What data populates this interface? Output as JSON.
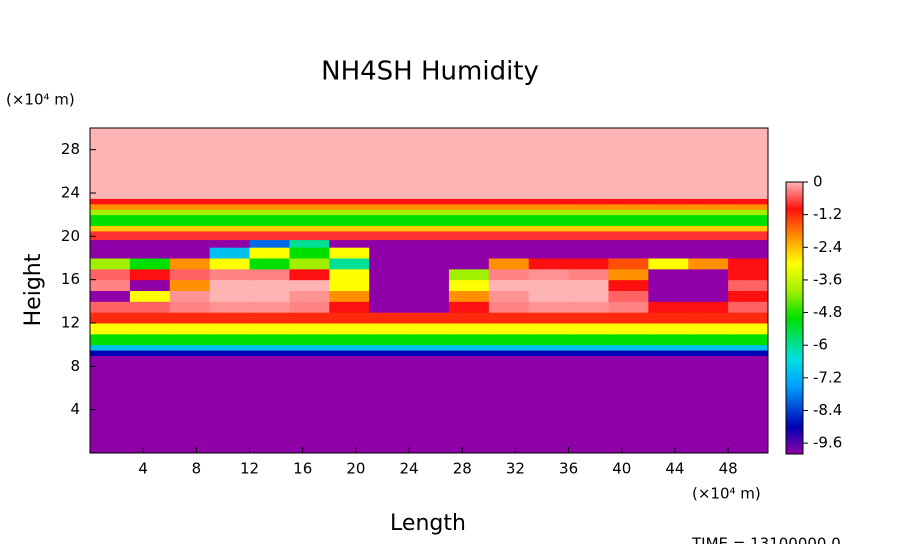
{
  "chart_data": {
    "type": "heatmap",
    "title": "NH4SH Humidity",
    "xlabel": "Length",
    "ylabel": "Height",
    "xunit": "(×10⁴ m)",
    "yunit": "(×10⁴ m)",
    "footer": "TIME =  13100000.0",
    "xlim": [
      0,
      51
    ],
    "ylim": [
      0,
      30
    ],
    "xticks": [
      4,
      8,
      12,
      16,
      20,
      24,
      28,
      32,
      36,
      40,
      44,
      48
    ],
    "yticks": [
      4,
      8,
      12,
      16,
      20,
      24,
      28
    ],
    "x_edges": [
      0,
      3,
      6,
      9,
      12,
      15,
      18,
      21,
      24,
      27,
      30,
      33,
      36,
      39,
      42,
      45,
      48,
      51
    ],
    "y_edges": [
      0,
      9,
      9.5,
      10,
      11,
      12,
      13,
      14,
      15,
      16,
      17,
      18,
      19,
      19.7,
      20.5,
      21,
      22,
      22.5,
      23,
      23.5,
      30
    ],
    "z": [
      [
        -10,
        -10,
        -10,
        -10,
        -10,
        -10,
        -10,
        -10,
        -10,
        -10,
        -10,
        -10,
        -10,
        -10,
        -10,
        -10,
        -10
      ],
      [
        -9,
        -9,
        -9,
        -9,
        -9,
        -9,
        -9,
        -9,
        -9,
        -9,
        -9,
        -9,
        -9,
        -9,
        -9,
        -9,
        -9
      ],
      [
        -7,
        -7,
        -7,
        -7,
        -7,
        -7,
        -7,
        -7,
        -7,
        -7,
        -7,
        -7,
        -7,
        -7,
        -7,
        -7,
        -7
      ],
      [
        -5,
        -5,
        -5,
        -5,
        -5,
        -5,
        -5,
        -5,
        -5,
        -5,
        -5,
        -5,
        -5,
        -5,
        -5,
        -5,
        -5
      ],
      [
        -3,
        -3,
        -3,
        -3,
        -3,
        -3,
        -3,
        -3,
        -3,
        -3,
        -3,
        -3,
        -3,
        -3,
        -3,
        -3,
        -3
      ],
      [
        -1.2,
        -1.2,
        -1.2,
        -1.2,
        -1.2,
        -1.2,
        -1.2,
        -1.2,
        -1.2,
        -1.2,
        -1.2,
        -1.2,
        -1.2,
        -1.2,
        -1.2,
        -1.2,
        -1.2
      ],
      [
        -0.5,
        -0.5,
        -0.3,
        -0.2,
        -0.2,
        -0.3,
        -1,
        -10,
        -10,
        -1,
        -0.3,
        -0.2,
        -0.2,
        -0.3,
        -1,
        -1,
        -0.5
      ],
      [
        -10,
        -3,
        -0.2,
        0,
        0,
        -0.2,
        -2,
        -10,
        -10,
        -2,
        -0.2,
        0,
        0,
        -0.5,
        -10,
        -10,
        -1
      ],
      [
        -0.3,
        -10,
        -2,
        0,
        0,
        0,
        -3,
        -10,
        -10,
        -3,
        0,
        0,
        0,
        -1,
        -10,
        -10,
        -0.5
      ],
      [
        -0.5,
        -1,
        -0.5,
        -0.3,
        -0.3,
        -1,
        -3,
        -10,
        -10,
        -4,
        -0.3,
        -0.2,
        -0.3,
        -2,
        -10,
        -10,
        -1
      ],
      [
        -4,
        -5,
        -2,
        -3,
        -5,
        -4,
        -6,
        -10,
        -10,
        -10,
        -2,
        -1,
        -1,
        -1.5,
        -3,
        -2,
        -1
      ],
      [
        -10,
        -10,
        -10,
        -7,
        -3,
        -5,
        -3,
        -10,
        -10,
        -10,
        -10,
        -10,
        -10,
        -10,
        -10,
        -10,
        -10
      ],
      [
        -10,
        -10,
        -10,
        -10,
        -8,
        -6,
        -10,
        -10,
        -10,
        -10,
        -10,
        -10,
        -10,
        -10,
        -10,
        -10,
        -10
      ],
      [
        -0.8,
        -0.8,
        -0.8,
        -0.8,
        -0.8,
        -0.8,
        -0.8,
        -0.8,
        -0.8,
        -0.8,
        -0.8,
        -0.8,
        -0.8,
        -0.8,
        -0.8,
        -0.8,
        -0.8
      ],
      [
        -2.5,
        -2.5,
        -2.5,
        -2.5,
        -2.5,
        -2.5,
        -2.5,
        -2.5,
        -2.5,
        -2.5,
        -2.5,
        -2.5,
        -2.5,
        -2.5,
        -2.5,
        -2.5,
        -2.5
      ],
      [
        -5,
        -5,
        -5,
        -5,
        -5,
        -5,
        -5,
        -5,
        -5,
        -5,
        -5,
        -5,
        -5,
        -5,
        -5,
        -5,
        -5
      ],
      [
        -4,
        -4,
        -4,
        -4,
        -4,
        -4,
        -4,
        -4,
        -4,
        -4,
        -4,
        -4,
        -4,
        -4,
        -4,
        -4,
        -4
      ],
      [
        -2,
        -2,
        -2,
        -2,
        -2,
        -2,
        -2,
        -2,
        -2,
        -2,
        -2,
        -2,
        -2,
        -2,
        -2,
        -2,
        -2
      ],
      [
        -1,
        -1,
        -1,
        -1,
        -1,
        -1,
        -1,
        -1,
        -1,
        -1,
        -1,
        -1,
        -1,
        -1,
        -1,
        -1,
        -1
      ],
      [
        0,
        0,
        0,
        0,
        0,
        0,
        0,
        0,
        0,
        0,
        0,
        0,
        0,
        0,
        0,
        0,
        0
      ]
    ],
    "colorbar_lim": [
      -10,
      0
    ],
    "colorbar_ticks": [
      0,
      -1.2,
      -2.4,
      -3.6,
      -4.8,
      -6,
      -7.2,
      -8.4,
      -9.6
    ],
    "colorscale": [
      [
        -10,
        "#9000a8"
      ],
      [
        -9,
        "#0000b4"
      ],
      [
        -7.5,
        "#00a0ff"
      ],
      [
        -6.5,
        "#00e0e0"
      ],
      [
        -5,
        "#00e000"
      ],
      [
        -4,
        "#a0f000"
      ],
      [
        -3,
        "#ffff00"
      ],
      [
        -2,
        "#ff9000"
      ],
      [
        -1,
        "#ff1010"
      ],
      [
        0,
        "#ffb4b4"
      ]
    ]
  }
}
